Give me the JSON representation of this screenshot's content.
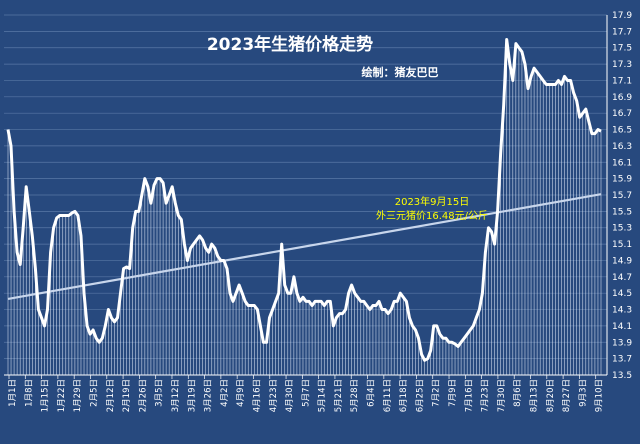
{
  "chart_data": {
    "type": "line",
    "title": "2023年生猪价格走势",
    "subtitle": "绘制：猪友巴巴",
    "annotation": {
      "date": "9月15日",
      "line1": "2023年9月15日",
      "line2": "外三元猪价16.48元/公斤",
      "value": 16.48
    },
    "ylim": [
      13.5,
      17.9
    ],
    "yticks": [
      13.5,
      13.7,
      13.9,
      14.1,
      14.3,
      14.5,
      14.7,
      14.9,
      15.1,
      15.3,
      15.5,
      15.7,
      15.9,
      16.1,
      16.3,
      16.5,
      16.7,
      16.9,
      17.1,
      17.3,
      17.5,
      17.7,
      17.9
    ],
    "xticks": [
      "1月1日",
      "1月8日",
      "1月15日",
      "1月22日",
      "1月29日",
      "2月5日",
      "2月12日",
      "2月19日",
      "2月26日",
      "3月5日",
      "3月12日",
      "3月19日",
      "3月26日",
      "4月2日",
      "4月9日",
      "4月16日",
      "4月23日",
      "4月30日",
      "5月7日",
      "5月14日",
      "5月21日",
      "5月28日",
      "6月4日",
      "6月11日",
      "6月18日",
      "6月25日",
      "7月2日",
      "7月9日",
      "7月16日",
      "7月23日",
      "7月30日",
      "8月6日",
      "8月13日",
      "8月20日",
      "8月27日",
      "9月3日",
      "9月10日"
    ],
    "grid": true,
    "colors": {
      "background": "#27497e",
      "line": "#ffffff",
      "trend": "#c8d6ec",
      "grid": "#5878a6",
      "annotation": "#ffff00"
    },
    "series": [
      {
        "values": [
          16.5,
          16.3,
          15.5,
          15.0,
          14.85,
          15.3,
          15.8,
          15.5,
          15.2,
          14.8,
          14.3,
          14.2,
          14.1,
          14.3,
          15.0,
          15.3,
          15.42,
          15.45,
          15.45,
          15.45,
          15.45,
          15.48,
          15.5,
          15.45,
          15.2,
          14.5,
          14.1,
          14.0,
          14.05,
          13.95,
          13.9,
          13.95,
          14.1,
          14.3,
          14.2,
          14.15,
          14.2,
          14.5,
          14.8,
          14.82,
          14.8,
          15.3,
          15.5,
          15.5,
          15.7,
          15.9,
          15.8,
          15.6,
          15.82,
          15.9,
          15.9,
          15.85,
          15.6,
          15.7,
          15.8,
          15.6,
          15.45,
          15.4,
          15.1,
          14.9,
          15.05,
          15.1,
          15.15,
          15.2,
          15.15,
          15.05,
          15.0,
          15.1,
          15.05,
          14.95,
          14.9,
          14.9,
          14.8,
          14.5,
          14.4,
          14.5,
          14.6,
          14.5,
          14.4,
          14.35,
          14.35,
          14.35,
          14.3,
          14.1,
          13.9,
          13.9,
          14.2,
          14.3,
          14.4,
          14.5,
          15.1,
          14.6,
          14.5,
          14.5,
          14.7,
          14.5,
          14.4,
          14.45,
          14.4,
          14.4,
          14.35,
          14.4,
          14.4,
          14.4,
          14.35,
          14.4,
          14.4,
          14.1,
          14.2,
          14.25,
          14.25,
          14.3,
          14.5,
          14.6,
          14.5,
          14.45,
          14.4,
          14.4,
          14.35,
          14.3,
          14.35,
          14.35,
          14.4,
          14.3,
          14.3,
          14.25,
          14.3,
          14.4,
          14.4,
          14.5,
          14.45,
          14.4,
          14.2,
          14.1,
          14.05,
          13.95,
          13.75,
          13.68,
          13.7,
          13.8,
          14.1,
          14.1,
          14.0,
          13.95,
          13.95,
          13.9,
          13.9,
          13.88,
          13.85,
          13.9,
          13.95,
          14.0,
          14.05,
          14.1,
          14.2,
          14.3,
          14.5,
          15.0,
          15.3,
          15.25,
          15.1,
          15.5,
          16.2,
          16.8,
          17.6,
          17.3,
          17.1,
          17.55,
          17.5,
          17.45,
          17.3,
          17.0,
          17.15,
          17.25,
          17.2,
          17.15,
          17.1,
          17.05,
          17.05,
          17.05,
          17.05,
          17.1,
          17.05,
          17.15,
          17.1,
          17.1,
          16.95,
          16.85,
          16.65,
          16.7,
          16.75,
          16.6,
          16.45,
          16.45,
          16.5,
          16.48
        ]
      },
      {
        "name": "trend",
        "type": "linear",
        "values": [
          14.43,
          15.71
        ]
      }
    ]
  }
}
